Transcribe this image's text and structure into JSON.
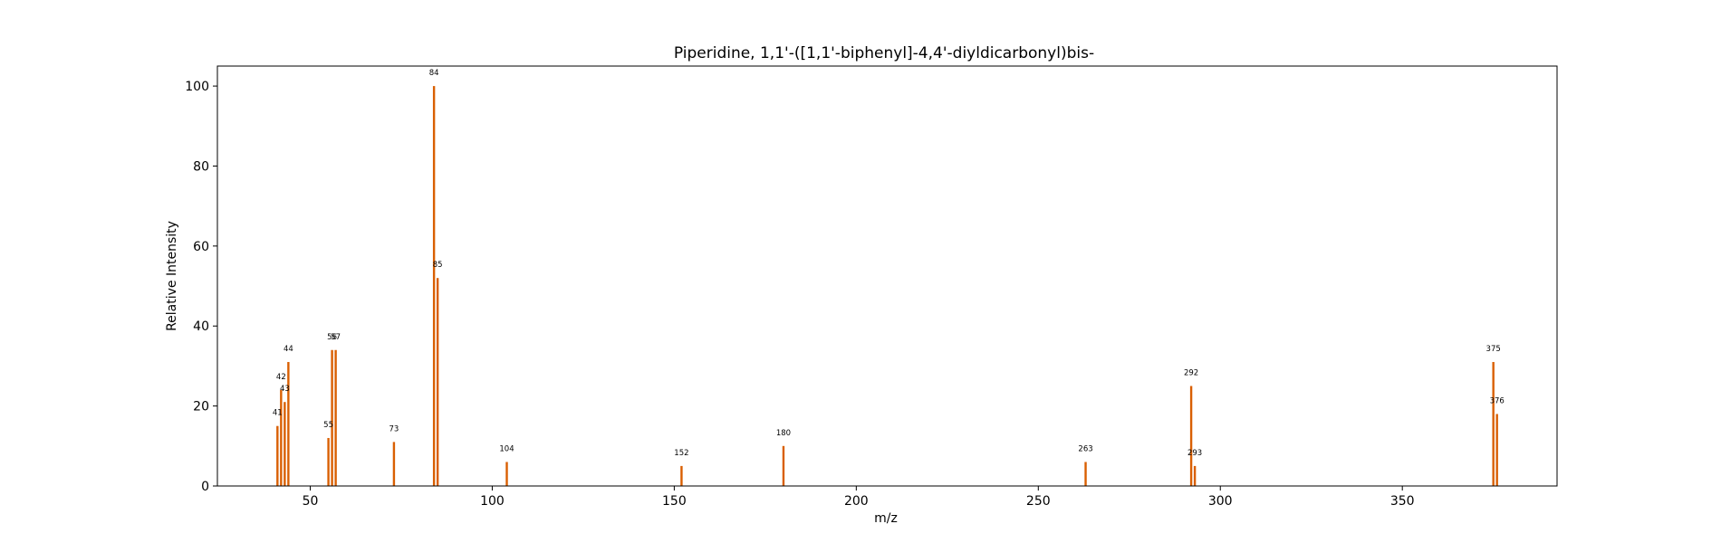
{
  "chart_data": {
    "type": "bar",
    "title": "Piperidine, 1,1'-([1,1'-biphenyl]-4,4'-diyldicarbonyl)bis-",
    "xlabel": "m/z",
    "ylabel": "Relative Intensity",
    "xlim": [
      24.5,
      392.5
    ],
    "ylim": [
      0,
      105
    ],
    "xticks": [
      50,
      100,
      150,
      200,
      250,
      300,
      350
    ],
    "yticks": [
      0,
      20,
      40,
      60,
      80,
      100
    ],
    "grid": false,
    "bar_color": "#d95f02",
    "peaks": [
      {
        "x": 41,
        "y": 15,
        "label": "41"
      },
      {
        "x": 42,
        "y": 24,
        "label": "42"
      },
      {
        "x": 43,
        "y": 21,
        "label": "43"
      },
      {
        "x": 44,
        "y": 31,
        "label": "44"
      },
      {
        "x": 55,
        "y": 12,
        "label": "55"
      },
      {
        "x": 56,
        "y": 34,
        "label": "56"
      },
      {
        "x": 57,
        "y": 34,
        "label": "57"
      },
      {
        "x": 73,
        "y": 11,
        "label": "73"
      },
      {
        "x": 84,
        "y": 100,
        "label": "84"
      },
      {
        "x": 85,
        "y": 52,
        "label": "85"
      },
      {
        "x": 104,
        "y": 6,
        "label": "104"
      },
      {
        "x": 152,
        "y": 5,
        "label": "152"
      },
      {
        "x": 180,
        "y": 10,
        "label": "180"
      },
      {
        "x": 263,
        "y": 6,
        "label": "263"
      },
      {
        "x": 292,
        "y": 25,
        "label": "292"
      },
      {
        "x": 293,
        "y": 5,
        "label": "293"
      },
      {
        "x": 375,
        "y": 31,
        "label": "375"
      },
      {
        "x": 376,
        "y": 18,
        "label": "376"
      }
    ]
  }
}
